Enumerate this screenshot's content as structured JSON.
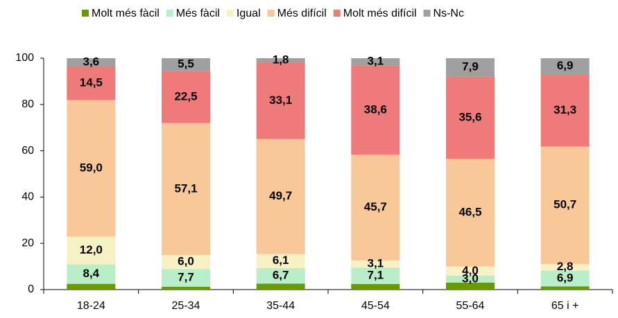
{
  "chart_data": {
    "type": "stacked_bar",
    "categories": [
      "18-24",
      "25-34",
      "35-44",
      "45-54",
      "55-64",
      "65 i +"
    ],
    "series": [
      {
        "name": "Molt més fàcil",
        "color": "#6a9a00",
        "values": [
          2.5,
          1.2,
          2.6,
          2.4,
          3.0,
          1.4
        ]
      },
      {
        "name": "Més fàcil",
        "color": "#b8eec8",
        "values": [
          8.4,
          7.7,
          6.7,
          7.1,
          3.0,
          6.9
        ],
        "value_labels": [
          "8,4",
          "7,7",
          "6,7",
          "7,1",
          "3,0",
          "6,9"
        ]
      },
      {
        "name": "Igual",
        "color": "#f6f2c4",
        "values": [
          12.0,
          6.0,
          6.1,
          3.1,
          4.0,
          2.8
        ],
        "value_labels": [
          "12,0",
          "6,0",
          "6,1",
          "3,1",
          "4,0",
          "2,8"
        ]
      },
      {
        "name": "Més difícil",
        "color": "#f9c898",
        "values": [
          59.0,
          57.1,
          49.7,
          45.7,
          46.5,
          50.7
        ],
        "value_labels": [
          "59,0",
          "57,1",
          "49,7",
          "45,7",
          "46,5",
          "50,7"
        ]
      },
      {
        "name": "Molt més difícil",
        "color": "#ee7a7a",
        "values": [
          14.5,
          22.5,
          33.1,
          38.6,
          35.6,
          31.3
        ],
        "value_labels": [
          "14,5",
          "22,5",
          "33,1",
          "38,6",
          "35,6",
          "31,3"
        ]
      },
      {
        "name": "Ns-Nc",
        "color": "#a0a0a0",
        "values": [
          3.6,
          5.5,
          1.8,
          3.1,
          7.9,
          6.9
        ],
        "value_labels": [
          "3,6",
          "5,5",
          "1,8",
          "3,1",
          "7,9",
          "6,9"
        ]
      }
    ],
    "ylim": [
      0,
      100
    ],
    "yticks": [
      0,
      20,
      40,
      60,
      80,
      100
    ],
    "grid": false,
    "legend": "top"
  }
}
